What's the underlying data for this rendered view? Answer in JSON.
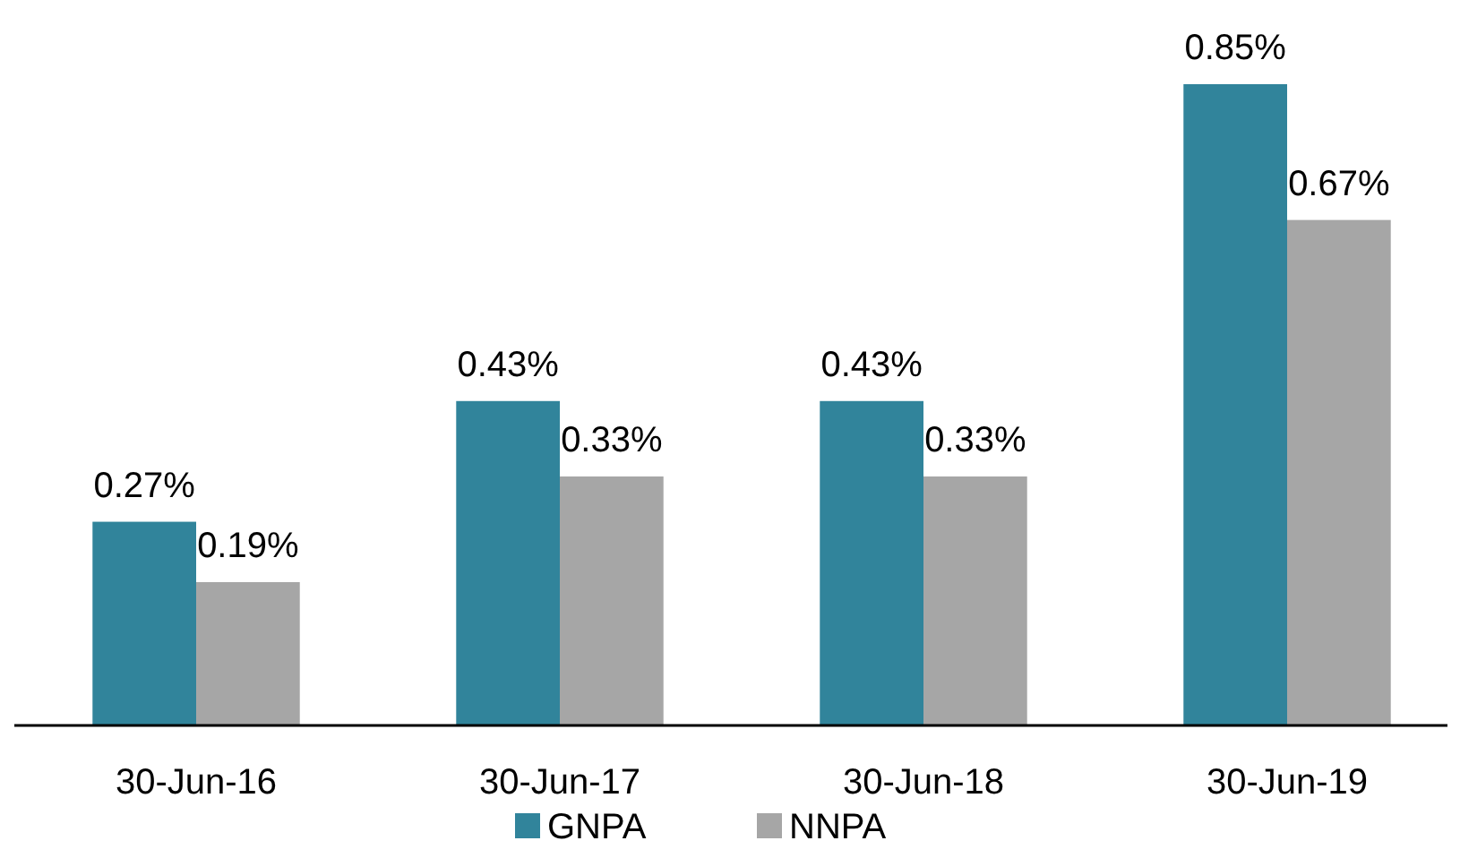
{
  "chart_data": {
    "type": "bar",
    "categories": [
      "30-Jun-16",
      "30-Jun-17",
      "30-Jun-18",
      "30-Jun-19"
    ],
    "series": [
      {
        "name": "GNPA",
        "color": "#31849b",
        "values": [
          0.27,
          0.43,
          0.43,
          0.85
        ],
        "value_labels": [
          "0.27%",
          "0.43%",
          "0.43%",
          "0.85%"
        ]
      },
      {
        "name": "NNPA",
        "color": "#a6a6a6",
        "values": [
          0.19,
          0.33,
          0.33,
          0.67
        ],
        "value_labels": [
          "0.19%",
          "0.33%",
          "0.33%",
          "0.67%"
        ]
      }
    ],
    "legend": "bottom"
  }
}
